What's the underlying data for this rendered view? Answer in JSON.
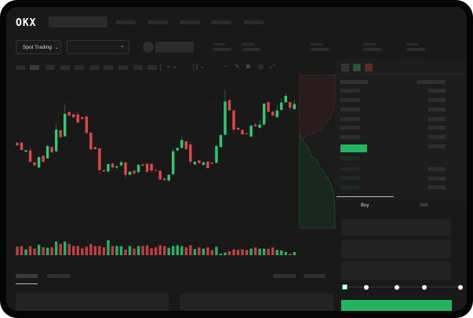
{
  "header": {
    "logo": "OKX",
    "market_selector": "Spot Trading",
    "pair_selector": "",
    "chevron_icon": "chevron-down-icon"
  },
  "toolbar": {
    "icons": [
      "line-icon",
      "pencil-icon",
      "camera-icon",
      "settings-icon",
      "fullscreen-icon"
    ]
  },
  "orderbook": {
    "view_icons": [
      "orderbook-both-icon",
      "orderbook-bids-icon",
      "orderbook-asks-icon"
    ]
  },
  "trade_panel": {
    "tabs": [
      {
        "label": "Buy",
        "active": true
      },
      {
        "label": "Sell",
        "active": false
      }
    ],
    "slider_percent": 0,
    "buy_button_color": "#22b45f"
  },
  "colors": {
    "up": "#2ecc71",
    "down": "#e04848",
    "background": "#191919"
  },
  "chart_data": {
    "type": "candlestick",
    "title": "",
    "xlabel": "",
    "ylabel": "",
    "grid": false,
    "ohlc": [
      [
        185,
        187,
        173,
        175
      ],
      [
        185,
        187,
        155,
        157
      ],
      [
        150,
        157,
        149,
        156
      ],
      [
        155,
        170,
        110,
        112
      ],
      [
        110,
        111,
        96,
        98
      ],
      [
        90,
        131,
        86,
        130
      ],
      [
        135,
        137,
        110,
        112
      ],
      [
        125,
        178,
        123,
        172
      ],
      [
        168,
        170,
        145,
        148
      ],
      [
        152,
        258,
        150,
        235
      ],
      [
        232,
        234,
        204,
        206
      ],
      [
        209,
        332,
        207,
        295
      ],
      [
        302,
        304,
        286,
        288
      ],
      [
        293,
        295,
        280,
        282
      ],
      [
        293,
        305,
        260,
        262
      ],
      [
        282,
        283,
        274,
        275
      ],
      [
        285,
        287,
        220,
        222
      ],
      [
        223,
        225,
        157,
        159
      ],
      [
        168,
        170,
        158,
        160
      ],
      [
        163,
        165,
        65,
        80
      ],
      [
        80,
        82,
        73,
        75
      ],
      [
        75,
        106,
        72,
        103
      ],
      [
        105,
        110,
        85,
        90
      ],
      [
        90,
        97,
        78,
        95
      ],
      [
        98,
        115,
        96,
        110
      ],
      [
        110,
        112,
        52,
        62
      ],
      [
        62,
        76,
        60,
        74
      ],
      [
        78,
        80,
        62,
        67
      ],
      [
        72,
        104,
        70,
        100
      ],
      [
        102,
        104,
        95,
        97
      ],
      [
        104,
        106,
        68,
        74
      ],
      [
        104,
        106,
        68,
        78
      ],
      [
        80,
        81,
        77,
        78
      ],
      [
        78,
        80,
        42,
        44
      ],
      [
        48,
        50,
        40,
        42
      ],
      [
        40,
        64,
        36,
        62
      ],
      [
        65,
        165,
        60,
        152
      ],
      [
        155,
        167,
        153,
        165
      ],
      [
        165,
        207,
        163,
        195
      ],
      [
        190,
        192,
        158,
        160
      ],
      [
        178,
        188,
        102,
        112
      ],
      [
        102,
        115,
        98,
        112
      ],
      [
        117,
        119,
        105,
        107
      ],
      [
        100,
        112,
        98,
        110
      ],
      [
        113,
        115,
        85,
        88
      ],
      [
        109,
        110,
        104,
        105
      ],
      [
        108,
        178,
        106,
        172
      ],
      [
        168,
        220,
        166,
        214
      ],
      [
        215,
        385,
        213,
        342
      ],
      [
        347,
        352,
        305,
        308
      ],
      [
        308,
        310,
        225,
        235
      ],
      [
        242,
        244,
        232,
        235
      ],
      [
        234,
        236,
        213,
        217
      ],
      [
        220,
        225,
        215,
        217
      ],
      [
        208,
        253,
        206,
        250
      ],
      [
        254,
        262,
        246,
        248
      ],
      [
        242,
        270,
        240,
        254
      ],
      [
        254,
        336,
        252,
        334
      ],
      [
        340,
        342,
        301,
        303
      ],
      [
        303,
        305,
        286,
        288
      ],
      [
        282,
        328,
        280,
        308
      ],
      [
        310,
        355,
        308,
        338
      ],
      [
        339,
        375,
        337,
        364
      ],
      [
        340,
        342,
        308,
        318
      ],
      [
        313,
        350,
        311,
        332
      ]
    ],
    "volume": [
      33,
      35,
      22,
      34,
      25,
      40,
      30,
      28,
      30,
      52,
      43,
      52,
      43,
      35,
      35,
      26,
      32,
      43,
      35,
      35,
      30,
      57,
      35,
      35,
      34,
      22,
      35,
      25,
      35,
      35,
      37,
      26,
      30,
      38,
      35,
      28,
      35,
      38,
      35,
      30,
      38,
      23,
      30,
      25,
      30,
      20,
      32,
      6,
      10,
      15,
      22,
      20,
      22,
      20,
      25,
      30,
      25,
      25,
      25,
      30,
      20,
      18,
      12,
      5,
      12
    ]
  }
}
